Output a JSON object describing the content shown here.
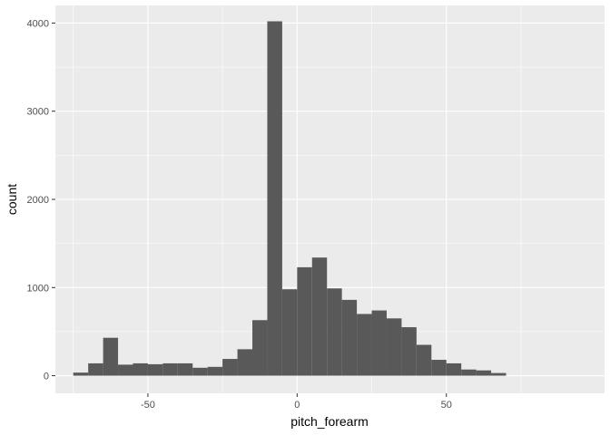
{
  "chart_data": {
    "type": "bar",
    "title": "",
    "xlabel": "pitch_forearm",
    "ylabel": "count",
    "xlim": [
      -81,
      103
    ],
    "ylim": [
      -200,
      4200
    ],
    "bin_width": 5,
    "bin_starts": [
      -75,
      -70,
      -65,
      -60,
      -55,
      -50,
      -45,
      -40,
      -35,
      -30,
      -25,
      -20,
      -15,
      -10,
      -5,
      0,
      5,
      10,
      15,
      20,
      25,
      30,
      35,
      40,
      45,
      50,
      55,
      60,
      65,
      70,
      75,
      80
    ],
    "counts": [
      35,
      140,
      430,
      125,
      140,
      130,
      140,
      140,
      90,
      100,
      190,
      300,
      630,
      4020,
      980,
      1230,
      1340,
      990,
      860,
      700,
      740,
      650,
      550,
      350,
      180,
      140,
      70,
      60,
      30,
      0,
      0,
      0
    ],
    "x_ticks": [
      -50,
      0,
      50
    ],
    "x_tick_labels": [
      "-50",
      "0",
      "50"
    ],
    "y_ticks": [
      0,
      1000,
      2000,
      3000,
      4000
    ],
    "y_tick_labels": [
      "0",
      "1000",
      "2000",
      "3000",
      "4000"
    ],
    "grid": true,
    "colors": {
      "panel_background": "#ebebeb",
      "grid_major": "#ffffff",
      "bar_fill": "#595959",
      "tick_text": "#4d4d4d"
    }
  }
}
